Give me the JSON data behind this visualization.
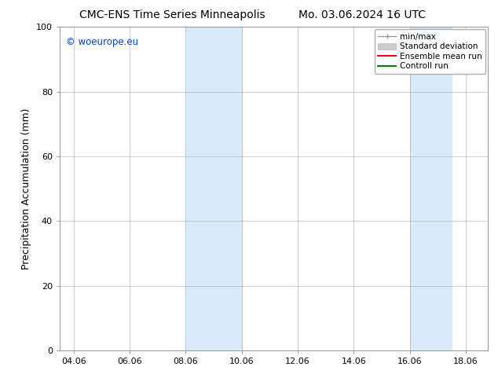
{
  "title_left": "CMC-ENS Time Series Minneapolis",
  "title_right": "Mo. 03.06.2024 16 UTC",
  "ylabel": "Precipitation Accumulation (mm)",
  "ylim": [
    0,
    100
  ],
  "yticks": [
    0,
    20,
    40,
    60,
    80,
    100
  ],
  "xlabel_ticks": [
    "04.06",
    "06.06",
    "08.06",
    "10.06",
    "12.06",
    "14.06",
    "16.06",
    "18.06"
  ],
  "x_tick_positions": [
    4,
    6,
    8,
    10,
    12,
    14,
    16,
    18
  ],
  "xlim": [
    3.5,
    18.8
  ],
  "watermark": "© woeurope.eu",
  "watermark_color": "#0044cc",
  "shaded_bands": [
    {
      "x_start": 8.0,
      "x_end": 10.0
    },
    {
      "x_start": 16.0,
      "x_end": 17.5
    }
  ],
  "shade_color": "#d8eaf8",
  "shade_alpha": 1.0,
  "legend_entries": [
    {
      "label": "min/max",
      "color": "#aaaaaa",
      "lw": 1.0
    },
    {
      "label": "Standard deviation",
      "color": "#cccccc",
      "lw": 6
    },
    {
      "label": "Ensemble mean run",
      "color": "#ff0000",
      "lw": 1.5
    },
    {
      "label": "Controll run",
      "color": "#008000",
      "lw": 1.5
    }
  ],
  "grid_color": "#aaaaaa",
  "grid_lw": 0.4,
  "bg_color": "#ffffff",
  "title_fontsize": 10,
  "tick_fontsize": 8,
  "label_fontsize": 9,
  "legend_fontsize": 7.5
}
